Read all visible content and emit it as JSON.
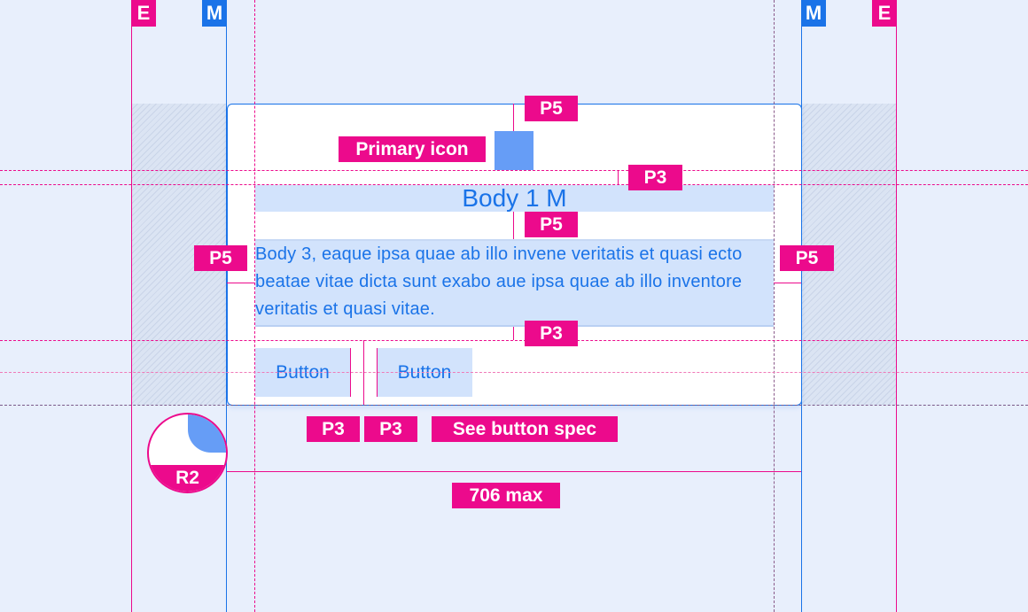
{
  "colors": {
    "spec": "#ec0a8c",
    "margin": "#1a73e8",
    "icon": "#669df6",
    "highlight": "#d2e3fc",
    "background": "#e8effc"
  },
  "markers": {
    "edge": "E",
    "margin": "M"
  },
  "card": {
    "icon": "primary-icon",
    "title": "Body 1 M",
    "body": "Body 3, eaque ipsa quae ab illo invene veritatis et quasi ecto beatae vitae dicta sunt exabo aue ipsa quae ab illo inventore veritatis et quasi vitae.",
    "buttons": [
      "Button",
      "Button"
    ]
  },
  "annotations": {
    "primary_icon": "Primary icon",
    "p5_top": "P5",
    "p3_title": "P3",
    "p5_body": "P5",
    "p5_left": "P5",
    "p5_right": "P5",
    "p3_buttons": "P3",
    "p3_gap_a": "P3",
    "p3_gap_b": "P3",
    "button_spec": "See button spec",
    "radius": "R2",
    "max_width": "706 max"
  }
}
